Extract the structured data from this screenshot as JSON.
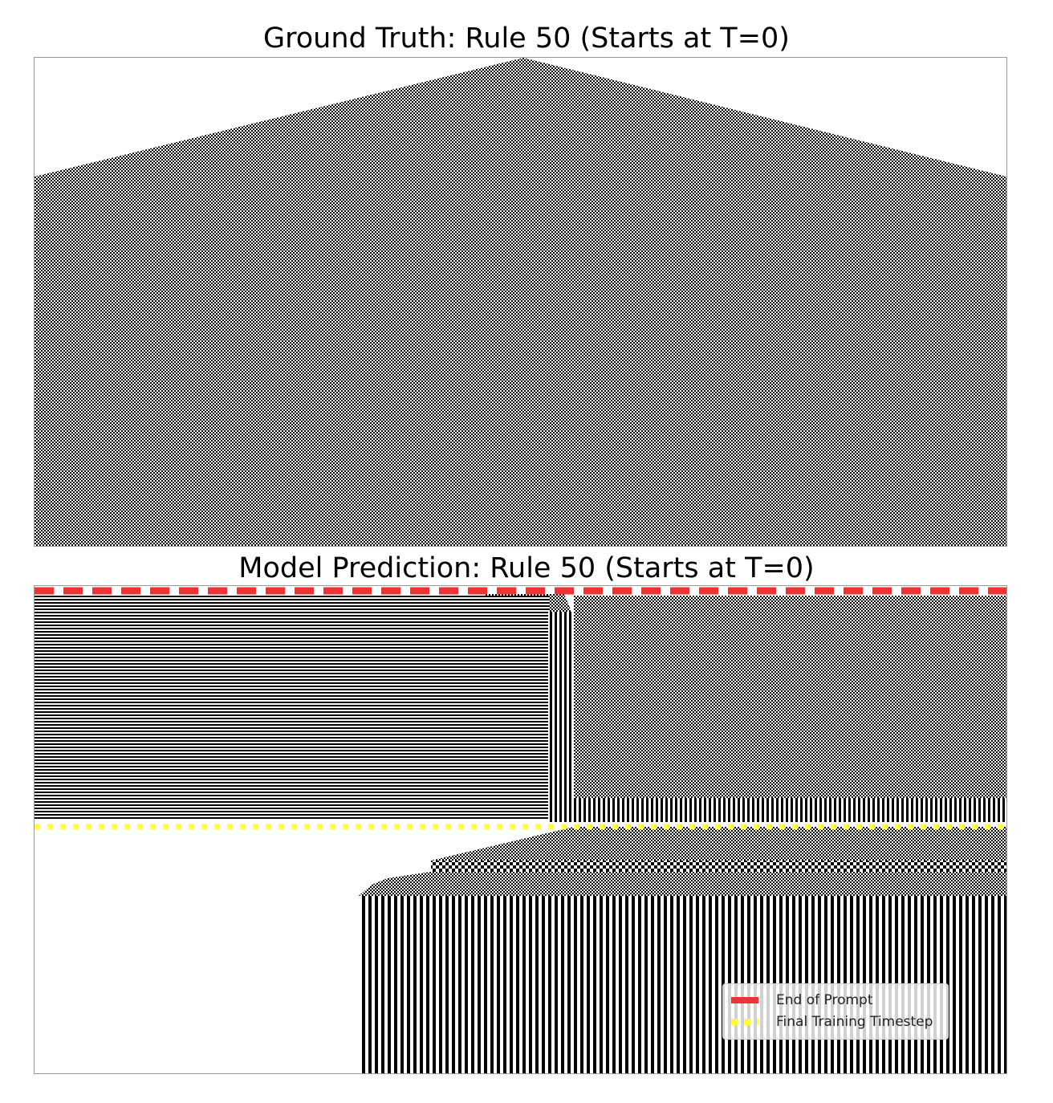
{
  "panels": {
    "ground_truth": {
      "title": "Ground Truth: Rule 50 (Starts at T=0)"
    },
    "prediction": {
      "title": "Model Prediction: Rule 50 (Starts at T=0)"
    }
  },
  "legend": {
    "end_of_prompt": "End of Prompt",
    "final_training_timestep": "Final Training Timestep"
  },
  "colors": {
    "end_of_prompt_line": "#ee3333",
    "final_training_line": "#ffff33",
    "cell_on": "#000000",
    "cell_off": "#ffffff"
  }
}
